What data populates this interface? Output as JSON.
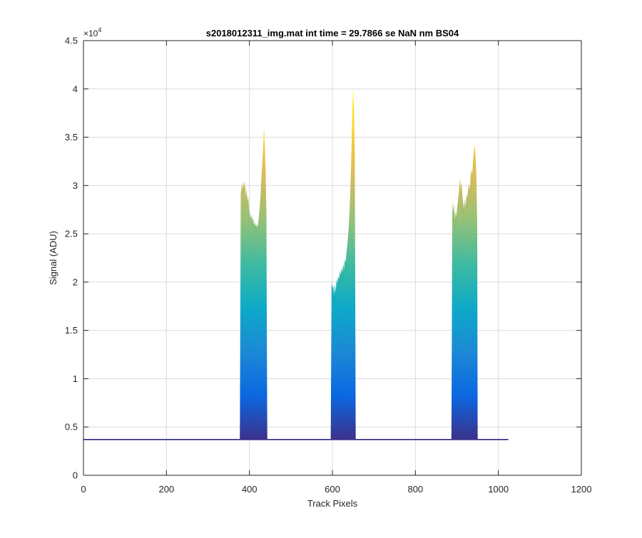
{
  "chart_data": {
    "type": "area",
    "title": "s2018012311_img.mat int time = 29.7866 se  NaN nm BS04",
    "xlabel": "Track Pixels",
    "ylabel": "Signal (ADU)",
    "y_exponent_label": "×10",
    "y_exponent_power": "4",
    "xlim": [
      0,
      1200
    ],
    "ylim": [
      0,
      45000
    ],
    "x_ticks": [
      0,
      200,
      400,
      600,
      800,
      1000,
      1200
    ],
    "x_tick_labels": [
      "0",
      "200",
      "400",
      "600",
      "800",
      "1000",
      "1200"
    ],
    "y_ticks": [
      0,
      5000,
      10000,
      15000,
      20000,
      25000,
      30000,
      35000,
      40000,
      45000
    ],
    "y_tick_labels": [
      "0",
      "0.5",
      "1",
      "1.5",
      "2",
      "2.5",
      "3",
      "3.5",
      "4",
      "4.5"
    ],
    "grid": true,
    "colormap": [
      "#352a87",
      "#0363e1",
      "#1485d4",
      "#06a7c6",
      "#38b99e",
      "#92bf73",
      "#d9ba56",
      "#fcce2e",
      "#f9fb0e"
    ],
    "baseline": {
      "x_start": 0,
      "x_end": 1024,
      "value": 3700
    },
    "peaks": [
      {
        "name": "peak-1",
        "x_start": 377,
        "x_end": 443,
        "lower_envelope": [
          [
            377,
            3700
          ],
          [
            382,
            21000
          ],
          [
            386,
            20500
          ],
          [
            390,
            21500
          ],
          [
            395,
            20800
          ],
          [
            400,
            19500
          ],
          [
            405,
            19800
          ],
          [
            410,
            20500
          ],
          [
            415,
            20300
          ],
          [
            420,
            20800
          ],
          [
            425,
            21200
          ],
          [
            430,
            22000
          ],
          [
            435,
            23500
          ],
          [
            440,
            20000
          ],
          [
            443,
            3700
          ]
        ],
        "upper_envelope": [
          [
            377,
            3700
          ],
          [
            379,
            29000
          ],
          [
            381,
            30100
          ],
          [
            383,
            29600
          ],
          [
            385,
            30500
          ],
          [
            387,
            29800
          ],
          [
            389,
            30400
          ],
          [
            391,
            28900
          ],
          [
            393,
            29700
          ],
          [
            395,
            28400
          ],
          [
            397,
            28900
          ],
          [
            399,
            27600
          ],
          [
            401,
            27100
          ],
          [
            403,
            26600
          ],
          [
            405,
            27000
          ],
          [
            407,
            26300
          ],
          [
            409,
            26700
          ],
          [
            411,
            25900
          ],
          [
            413,
            26200
          ],
          [
            415,
            25800
          ],
          [
            417,
            26000
          ],
          [
            419,
            25600
          ],
          [
            421,
            26100
          ],
          [
            423,
            26800
          ],
          [
            425,
            27800
          ],
          [
            427,
            29200
          ],
          [
            429,
            30900
          ],
          [
            431,
            32400
          ],
          [
            433,
            33800
          ],
          [
            435,
            36000
          ],
          [
            437,
            34200
          ],
          [
            439,
            31500
          ],
          [
            441,
            27000
          ],
          [
            443,
            3700
          ]
        ]
      },
      {
        "name": "peak-2",
        "x_start": 596,
        "x_end": 656,
        "lower_envelope": [
          [
            596,
            3700
          ],
          [
            600,
            15200
          ],
          [
            605,
            14800
          ],
          [
            610,
            15400
          ],
          [
            615,
            15800
          ],
          [
            620,
            16200
          ],
          [
            625,
            16800
          ],
          [
            630,
            17500
          ],
          [
            635,
            18400
          ],
          [
            640,
            20500
          ],
          [
            645,
            24500
          ],
          [
            650,
            26500
          ],
          [
            653,
            24000
          ],
          [
            656,
            3700
          ]
        ],
        "upper_envelope": [
          [
            596,
            3700
          ],
          [
            598,
            20000
          ],
          [
            600,
            19400
          ],
          [
            602,
            19600
          ],
          [
            604,
            18600
          ],
          [
            606,
            19800
          ],
          [
            608,
            18900
          ],
          [
            610,
            20400
          ],
          [
            612,
            19800
          ],
          [
            614,
            20600
          ],
          [
            616,
            20300
          ],
          [
            618,
            21200
          ],
          [
            620,
            20700
          ],
          [
            622,
            21500
          ],
          [
            624,
            21000
          ],
          [
            626,
            21900
          ],
          [
            628,
            21300
          ],
          [
            630,
            22400
          ],
          [
            632,
            22000
          ],
          [
            634,
            23100
          ],
          [
            636,
            23800
          ],
          [
            638,
            24900
          ],
          [
            640,
            26200
          ],
          [
            642,
            28000
          ],
          [
            644,
            30600
          ],
          [
            646,
            33900
          ],
          [
            648,
            37600
          ],
          [
            650,
            40100
          ],
          [
            652,
            38000
          ],
          [
            654,
            33200
          ],
          [
            656,
            3700
          ]
        ]
      },
      {
        "name": "peak-3",
        "x_start": 887,
        "x_end": 950,
        "lower_envelope": [
          [
            887,
            3700
          ],
          [
            890,
            20500
          ],
          [
            895,
            21200
          ],
          [
            900,
            20200
          ],
          [
            905,
            20800
          ],
          [
            910,
            21400
          ],
          [
            915,
            20700
          ],
          [
            920,
            21300
          ],
          [
            925,
            20500
          ],
          [
            930,
            21600
          ],
          [
            935,
            20900
          ],
          [
            940,
            22500
          ],
          [
            945,
            23800
          ],
          [
            948,
            21500
          ],
          [
            950,
            3700
          ]
        ],
        "upper_envelope": [
          [
            887,
            3700
          ],
          [
            889,
            28500
          ],
          [
            891,
            27200
          ],
          [
            893,
            28100
          ],
          [
            895,
            26500
          ],
          [
            897,
            27300
          ],
          [
            899,
            26800
          ],
          [
            901,
            27900
          ],
          [
            903,
            28600
          ],
          [
            905,
            29400
          ],
          [
            907,
            30800
          ],
          [
            909,
            29600
          ],
          [
            911,
            30400
          ],
          [
            913,
            29000
          ],
          [
            915,
            28300
          ],
          [
            917,
            27600
          ],
          [
            919,
            28600
          ],
          [
            921,
            27800
          ],
          [
            923,
            29100
          ],
          [
            925,
            28700
          ],
          [
            927,
            29600
          ],
          [
            929,
            30200
          ],
          [
            931,
            29500
          ],
          [
            933,
            30900
          ],
          [
            935,
            31700
          ],
          [
            937,
            31100
          ],
          [
            939,
            32600
          ],
          [
            941,
            33400
          ],
          [
            943,
            34300
          ],
          [
            945,
            33000
          ],
          [
            947,
            31000
          ],
          [
            949,
            26000
          ],
          [
            950,
            3700
          ]
        ]
      }
    ]
  }
}
